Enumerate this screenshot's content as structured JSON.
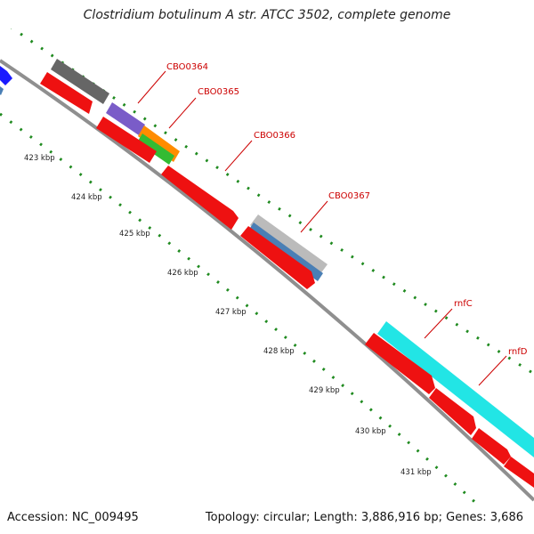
{
  "title": "Clostridium botulinum A str. ATCC 3502, complete genome",
  "footer": {
    "accession": "Accession: NC_009495",
    "summary": "Topology: circular; Length: 3,886,916 bp; Genes: 3,686"
  },
  "colors": {
    "backbone": "#8a8a8a",
    "tick": "#1f8a1f",
    "label": "#cc0000",
    "cds": "#ee1111",
    "gray_gene": "#666666",
    "light_gray_gene": "#bbbbbb",
    "purple_gene": "#7a5cc8",
    "orange_gene": "#ff8c00",
    "green_gene": "#33bb33",
    "steel_gene": "#4a7fb5",
    "cyan_gene": "#22e5e5",
    "blue_gene": "#1a1aff"
  },
  "kbp_labels": [
    "423 kbp",
    "424 kbp",
    "425 kbp",
    "426 kbp",
    "427 kbp",
    "428 kbp",
    "429 kbp",
    "430 kbp",
    "431 kbp"
  ],
  "gene_labels": [
    "CBO0364",
    "CBO0365",
    "CBO0366",
    "CBO0367",
    "rnfC",
    "rnfD"
  ]
}
